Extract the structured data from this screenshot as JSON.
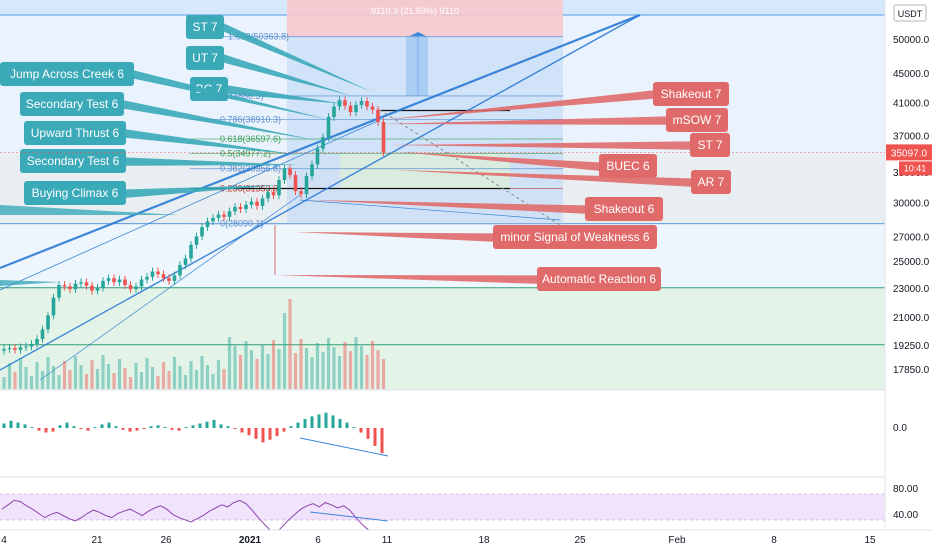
{
  "quote_currency": "USDT",
  "price_axis": {
    "ticks": [
      "50000.0",
      "45000.0",
      "41000.0",
      "37000.0",
      "33000.0",
      "30000.0",
      "27000.0",
      "25000.0",
      "23000.0",
      "21000.0",
      "19250.0",
      "17850.0"
    ],
    "last_price": "35097.0",
    "countdown": "10:41"
  },
  "oscillator_axis": {
    "ticks": [
      "0.0"
    ]
  },
  "rsi_axis": {
    "ticks": [
      "80.00",
      "40.00"
    ]
  },
  "time_axis": {
    "ticks": [
      "4",
      "21",
      "26",
      "2021",
      "6",
      "11",
      "18",
      "25",
      "Feb",
      "8",
      "15"
    ]
  },
  "measure_label": "9110.3 (21.69%) 9110",
  "fib_labels": [
    "1.618(50363.8)",
    "1(41856.3)",
    "0.786(38910.3)",
    "0.618(36597.6)",
    "0.5(34977.2)",
    "0.382(33356.8)",
    "0.236(31353.0)",
    "0(28090.1)"
  ],
  "left_callouts": [
    {
      "text": "ST 7"
    },
    {
      "text": "UT 7"
    },
    {
      "text": "BC 7"
    },
    {
      "text": "Jump Across Creek 6"
    },
    {
      "text": "Secondary Test 6"
    },
    {
      "text": "Upward Thrust 6"
    },
    {
      "text": "Secondary Test 6"
    },
    {
      "text": "Buying Climax 6"
    }
  ],
  "right_callouts": [
    {
      "text": "Shakeout 7"
    },
    {
      "text": "mSOW 7"
    },
    {
      "text": "ST 7"
    },
    {
      "text": "BUEC 6"
    },
    {
      "text": "AR 7"
    },
    {
      "text": "Shakeout 6"
    },
    {
      "text": "minor Signal of Weakness 6"
    },
    {
      "text": "Automatic Reaction 6"
    }
  ],
  "colors": {
    "up": "#26a69a",
    "down": "#ef5350",
    "callout_left": "#3aa9b8",
    "callout_right": "#e06a6a",
    "trendline": "#2a7bd4",
    "zone_blue": "#d6e8fb",
    "zone_green": "#e4f3e8",
    "zone_red": "#f7d4d6",
    "rsi_band": "#f1e3fb"
  },
  "chart_data": {
    "type": "candlestick",
    "symbol_quote": "USDT",
    "yscale": "log",
    "ylim": [
      17000,
      56000
    ],
    "x_ticks": [
      "4",
      "21",
      "26",
      "2021",
      "6",
      "11",
      "18",
      "25",
      "Feb",
      "8",
      "15"
    ],
    "y_ticks": [
      50000,
      45000,
      41000,
      37000,
      33000,
      30000,
      27000,
      25000,
      23000,
      21000,
      19250,
      17850
    ],
    "last_price": 35097.0,
    "fibonacci": [
      {
        "level": 1.618,
        "price": 50363.8
      },
      {
        "level": 1,
        "price": 41856.3
      },
      {
        "level": 0.786,
        "price": 38910.3
      },
      {
        "level": 0.618,
        "price": 36597.6
      },
      {
        "level": 0.5,
        "price": 34977.2
      },
      {
        "level": 0.382,
        "price": 33356.8
      },
      {
        "level": 0.236,
        "price": 31353.0
      },
      {
        "level": 0,
        "price": 28090.1
      }
    ],
    "close_series": [
      19000,
      19050,
      18950,
      19100,
      19150,
      19300,
      19600,
      20200,
      21100,
      22300,
      23200,
      23100,
      22900,
      23300,
      23400,
      23150,
      22800,
      23000,
      23500,
      23700,
      23400,
      23600,
      23200,
      22900,
      23100,
      23600,
      23800,
      24200,
      24000,
      23700,
      23500,
      23900,
      24700,
      25200,
      26300,
      27000,
      27800,
      28300,
      28600,
      28900,
      28700,
      29200,
      29600,
      29400,
      29800,
      30100,
      29700,
      30400,
      31000,
      30700,
      32200,
      33400,
      32700,
      31100,
      30800,
      32600,
      33800,
      35500,
      36800,
      39200,
      40500,
      41300,
      40600,
      39800,
      40700,
      41200,
      40500,
      40100,
      38600,
      35097
    ],
    "oscillator": [
      0.5,
      0.8,
      0.6,
      0.4,
      0.1,
      -0.3,
      -0.5,
      -0.4,
      0.3,
      0.6,
      0.2,
      -0.1,
      -0.3,
      0.1,
      0.4,
      0.6,
      0.2,
      -0.2,
      -0.4,
      -0.3,
      -0.1,
      0.2,
      0.3,
      0.1,
      -0.2,
      -0.3,
      0.1,
      0.3,
      0.5,
      0.7,
      0.9,
      0.4,
      0.2,
      -0.1,
      -0.5,
      -0.8,
      -1.2,
      -1.6,
      -1.3,
      -0.9,
      -0.4,
      0.2,
      0.6,
      1.0,
      1.3,
      1.5,
      1.7,
      1.4,
      1.0,
      0.6,
      0.1,
      -0.5,
      -1.2,
      -2.0,
      -2.8
    ],
    "rsi": [
      66,
      70,
      74,
      73,
      69,
      66,
      62,
      58,
      61,
      63,
      60,
      57,
      55,
      58,
      62,
      65,
      63,
      60,
      58,
      62,
      64,
      66,
      63,
      60,
      64,
      67,
      69,
      66,
      61,
      58,
      56,
      54,
      57,
      60,
      64,
      67,
      70,
      68,
      72,
      74,
      71,
      65,
      58,
      52,
      46,
      44,
      50,
      56,
      61,
      66,
      69,
      71,
      68,
      72,
      70,
      67,
      69,
      65,
      58,
      52,
      47,
      45,
      43
    ]
  }
}
